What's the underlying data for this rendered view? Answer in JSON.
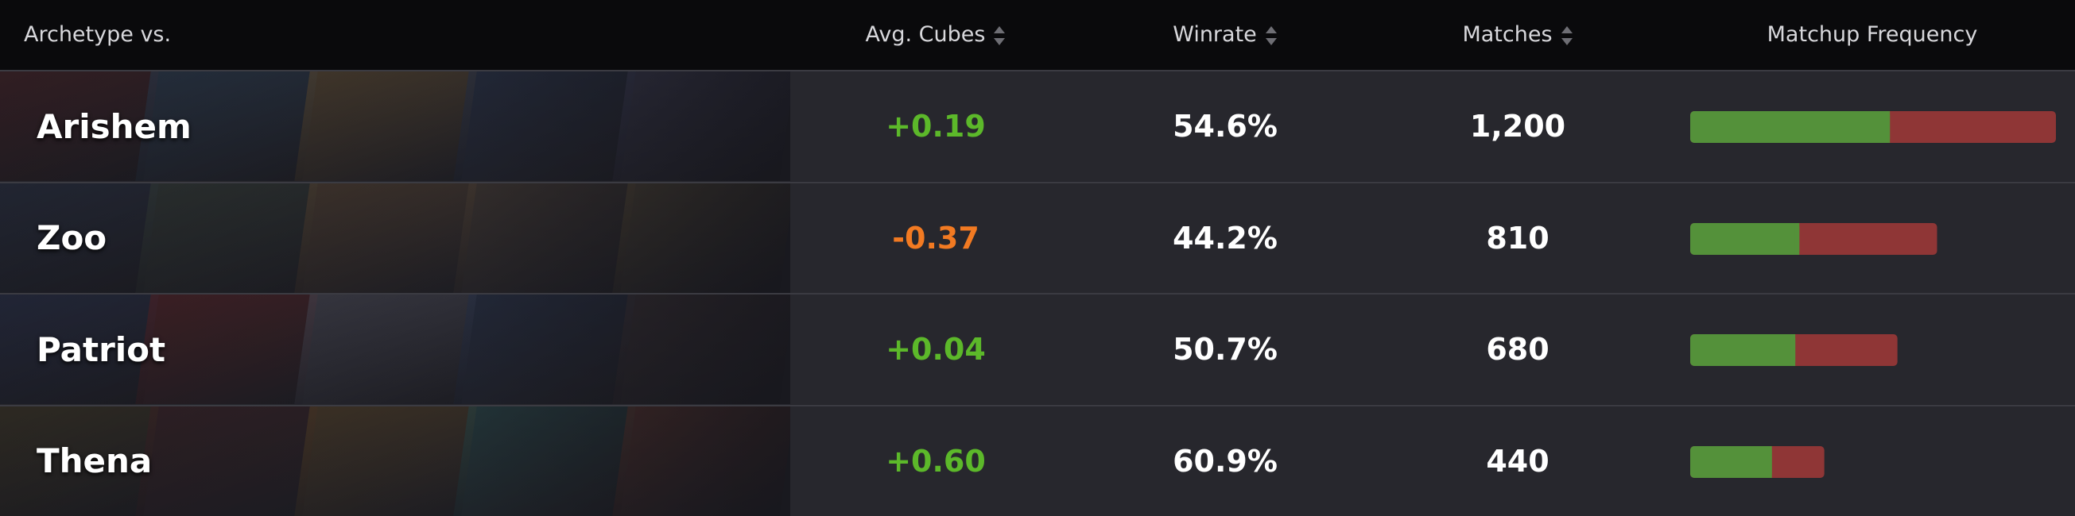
{
  "header": {
    "columns": [
      "Archetype vs.",
      "Avg. Cubes",
      "Winrate",
      "Matches",
      "Matchup Frequency"
    ]
  },
  "bar_colors": [
    "#54913a",
    "#8f3636"
  ],
  "rows": [
    {
      "name": "Arishem",
      "cubes": "+0.19",
      "cubes_color": "#5cb82a",
      "winrate": {
        "value": 54.6,
        "label": "54.6%"
      },
      "matches": {
        "value": 1200,
        "label": "1,200"
      }
    },
    {
      "name": "Zoo",
      "cubes": "-0.37",
      "cubes_color": "#f27a22",
      "winrate": {
        "value": 44.2,
        "label": "44.2%"
      },
      "matches": {
        "value": 810,
        "label": "810"
      }
    },
    {
      "name": "Patriot",
      "cubes": "+0.04",
      "cubes_color": "#5cb82a",
      "winrate": {
        "value": 50.7,
        "label": "50.7%"
      },
      "matches": {
        "value": 680,
        "label": "680"
      }
    },
    {
      "name": "Thena",
      "cubes": "+0.60",
      "cubes_color": "#5cb82a",
      "winrate": {
        "value": 60.9,
        "label": "60.9%"
      },
      "matches": {
        "value": 440,
        "label": "440"
      }
    }
  ]
}
